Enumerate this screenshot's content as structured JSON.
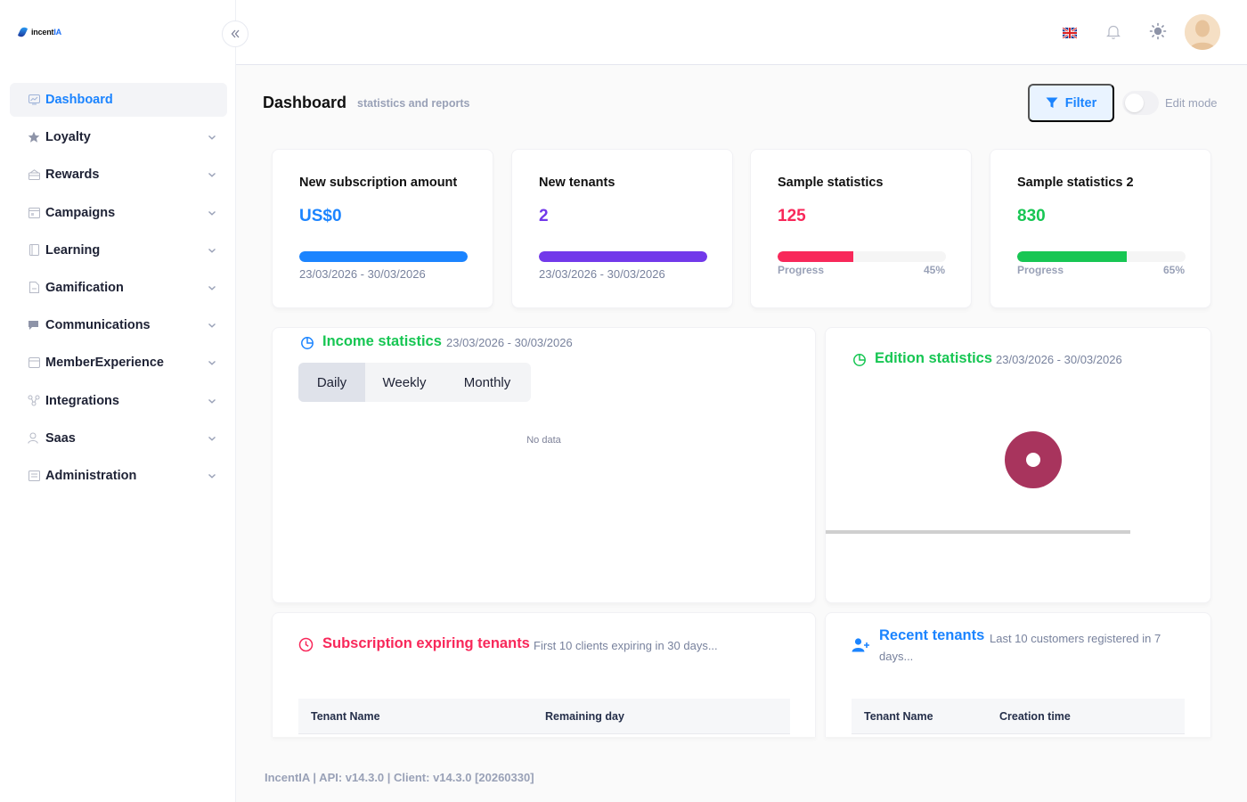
{
  "brand": {
    "name_prefix": "incent",
    "name_suffix": "IA"
  },
  "sidebar": {
    "items": [
      {
        "label": "Dashboard",
        "icon": "dashboard-icon",
        "active": true
      },
      {
        "label": "Loyalty",
        "icon": "star-icon"
      },
      {
        "label": "Rewards",
        "icon": "gift-icon"
      },
      {
        "label": "Campaigns",
        "icon": "calendar-icon"
      },
      {
        "label": "Learning",
        "icon": "book-icon"
      },
      {
        "label": "Gamification",
        "icon": "document-icon"
      },
      {
        "label": "Communications",
        "icon": "chat-icon"
      },
      {
        "label": "MemberExperience",
        "icon": "inbox-icon"
      },
      {
        "label": "Integrations",
        "icon": "network-icon"
      },
      {
        "label": "Saas",
        "icon": "users-icon"
      },
      {
        "label": "Administration",
        "icon": "list-icon"
      }
    ]
  },
  "header": {
    "language": "en-GB flag",
    "notifications_icon": "bell-icon",
    "theme_icon": "sun-icon"
  },
  "toolbar": {
    "title": "Dashboard",
    "subtitle": "statistics and reports",
    "filter_label": "Filter",
    "edit_mode_label": "Edit mode",
    "edit_mode_on": false
  },
  "stats": [
    {
      "title": "New subscription amount",
      "value": "US$0",
      "color": "#1b84ff",
      "date": "23/03/2026 - 30/03/2026",
      "progress": 1.0
    },
    {
      "title": "New tenants",
      "value": "2",
      "color": "#7239ea",
      "date": "23/03/2026 - 30/03/2026",
      "progress": 1.0
    },
    {
      "title": "Sample statistics",
      "value": "125",
      "color": "#f8285a",
      "progress_label": "Progress",
      "progress_text": "45%",
      "progress": 0.45
    },
    {
      "title": "Sample statistics 2",
      "value": "830",
      "color": "#17c653",
      "progress_label": "Progress",
      "progress_text": "65%",
      "progress": 0.65
    }
  ],
  "income": {
    "title": "Income statistics",
    "date": "23/03/2026 - 30/03/2026",
    "tabs": [
      "Daily",
      "Weekly",
      "Monthly"
    ],
    "active_tab": "Daily",
    "empty_text": "No data"
  },
  "edition": {
    "title": "Edition statistics",
    "date": "23/03/2026 - 30/03/2026",
    "donut_color": "#a8345d"
  },
  "expiring": {
    "title": "Subscription expiring tenants",
    "subtitle": "First 10 clients expiring in 30 days...",
    "columns": [
      "Tenant Name",
      "Remaining day"
    ]
  },
  "recent": {
    "title": "Recent tenants",
    "subtitle": "Last 10 customers registered in 7 days...",
    "columns": [
      "Tenant Name",
      "Creation time"
    ]
  },
  "footer": {
    "text": "IncentIA | API: v14.3.0 | Client: v14.3.0 [20260330]"
  },
  "colors": {
    "accent": "#1b84ff",
    "success": "#17c653",
    "danger": "#f8285a",
    "purple": "#7239ea"
  }
}
